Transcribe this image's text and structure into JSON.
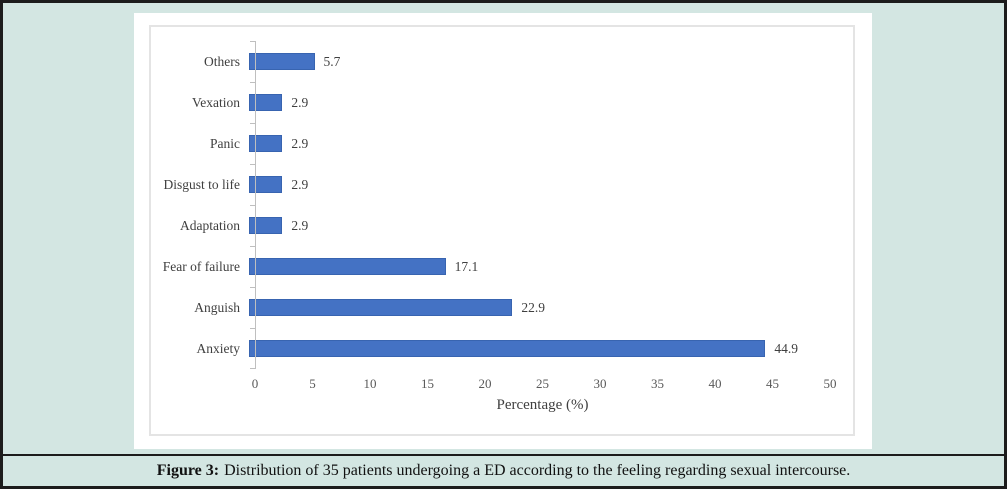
{
  "chart_data": {
    "type": "bar",
    "orientation": "horizontal",
    "categories": [
      "Others",
      "Vexation",
      "Panic",
      "Disgust to life",
      "Adaptation",
      "Fear of failure",
      "Anguish",
      "Anxiety"
    ],
    "values": [
      5.7,
      2.9,
      2.9,
      2.9,
      2.9,
      17.1,
      22.9,
      44.9
    ],
    "value_labels": [
      "5.7",
      "2.9",
      "2.9",
      "2.9",
      "2.9",
      "17.1",
      "22.9",
      "44.9"
    ],
    "title": "",
    "xlabel": "Percentage (%)",
    "ylabel": "",
    "xlim": [
      0,
      50
    ],
    "xticks": [
      0,
      5,
      10,
      15,
      20,
      25,
      30,
      35,
      40,
      45,
      50
    ],
    "grid": false,
    "legend": false,
    "bar_color": "#4472c4",
    "bar_border_color": "#3864b0"
  },
  "caption": {
    "label": "Figure 3:",
    "text": "Distribution of 35 patients undergoing a ED according to the feeling regarding sexual intercourse."
  },
  "colors": {
    "frame_background": "#d3e6e2",
    "frame_border": "#1c1c1c",
    "panel_background": "#ffffff",
    "plot_border": "#e4e4e4",
    "axis_line": "#bfbfbf",
    "category_text": "#3f3f3f",
    "tick_text": "#595959",
    "caption_text": "#111111"
  }
}
